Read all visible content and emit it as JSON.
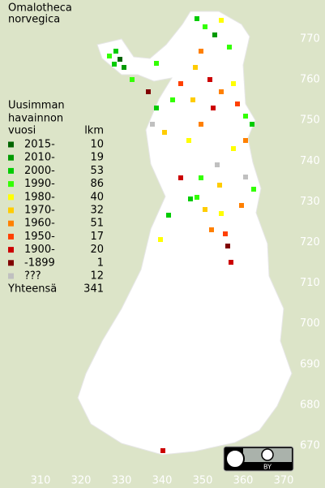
{
  "title": [
    "Omalotheca",
    "norvegica"
  ],
  "legend": {
    "header": [
      "Uusimman",
      "havainnon",
      "vuosi"
    ],
    "count_header": "lkm",
    "entries": [
      {
        "label": "2015-",
        "count": 10,
        "color": "#006400"
      },
      {
        "label": "2010-",
        "count": 19,
        "color": "#009a00"
      },
      {
        "label": "2000-",
        "count": 53,
        "color": "#00cc00"
      },
      {
        "label": "1990-",
        "count": 86,
        "color": "#33ff00"
      },
      {
        "label": "1980-",
        "count": 40,
        "color": "#ffff00"
      },
      {
        "label": "1970-",
        "count": 32,
        "color": "#ffcc00"
      },
      {
        "label": "1960-",
        "count": 51,
        "color": "#ff8000"
      },
      {
        "label": "1950-",
        "count": 17,
        "color": "#ff4000"
      },
      {
        "label": "1900-",
        "count": 20,
        "color": "#cc0000"
      },
      {
        "label": "-1899",
        "count": 1,
        "color": "#800000"
      },
      {
        "label": "???",
        "count": 12,
        "color": "#c0c0c0"
      }
    ],
    "total_label": "Yhteensä",
    "total": 341
  },
  "grid": {
    "north": [
      770,
      760,
      750,
      740,
      730,
      720,
      710,
      700,
      690,
      680,
      670
    ],
    "east": [
      310,
      320,
      330,
      340,
      350,
      360,
      370
    ]
  },
  "license": {
    "badge": "BY"
  }
}
